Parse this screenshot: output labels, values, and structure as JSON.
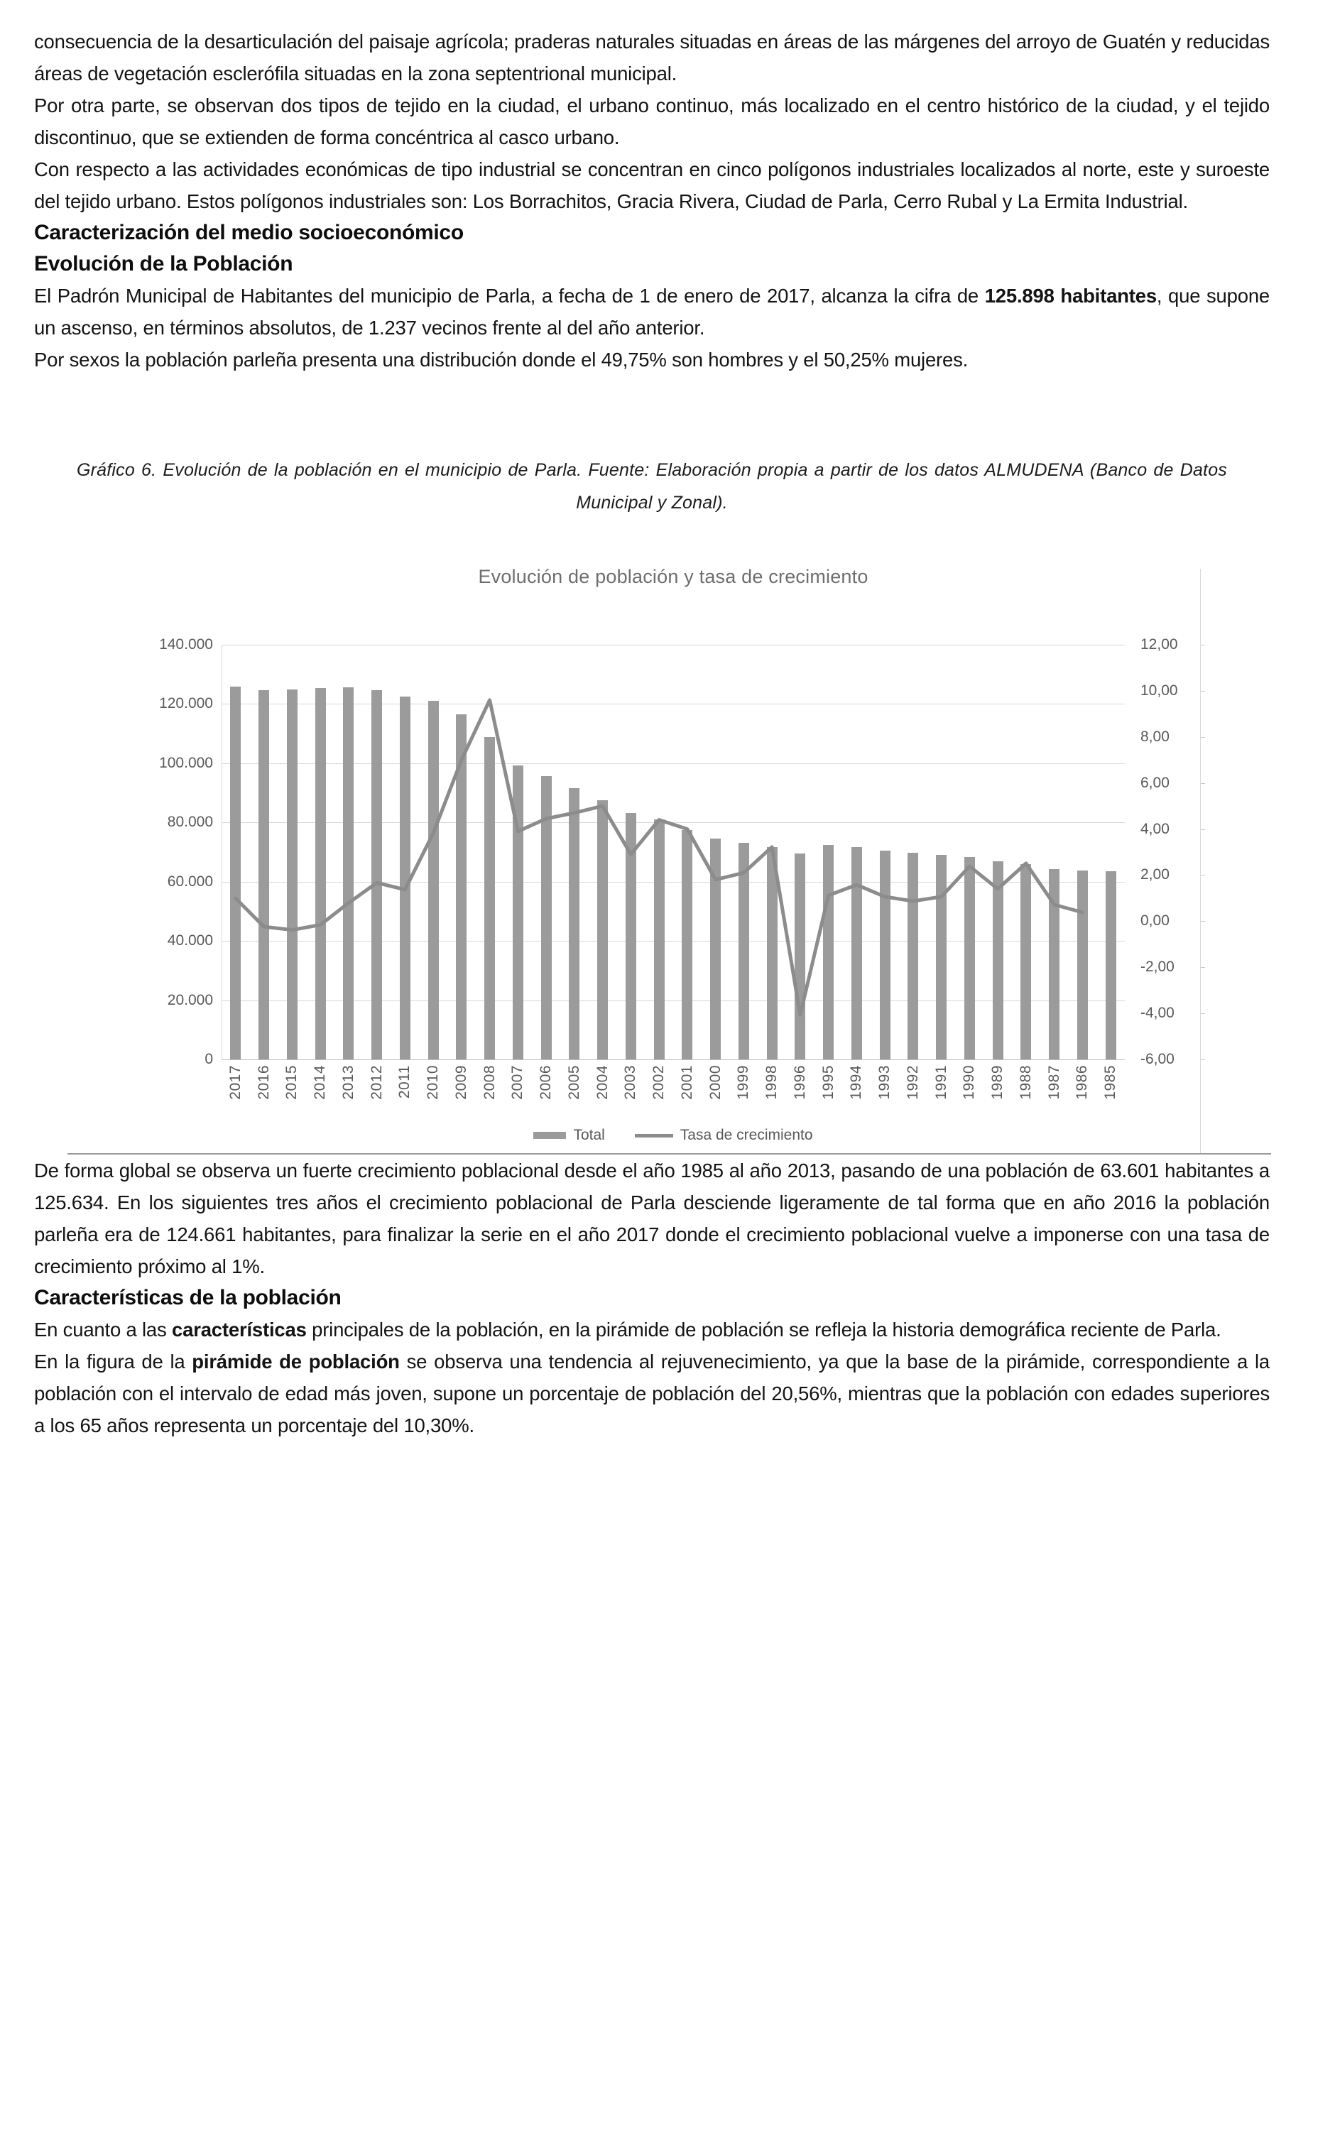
{
  "document": {
    "p1": "consecuencia de la desarticulación del paisaje agrícola; praderas naturales situadas en áreas de las márgenes del arroyo de Guatén y reducidas áreas de vegetación esclerófila situadas en la zona septentrional municipal.",
    "p2": "Por otra parte, se observan dos tipos de tejido en la ciudad, el urbano continuo, más localizado en el centro histórico de la ciudad, y el tejido discontinuo, que se extienden de forma concéntrica al casco urbano.",
    "p3": "Con respecto a las actividades económicas de tipo industrial se concentran en cinco polígonos industriales localizados al norte, este y suroeste del tejido urbano. Estos polígonos industriales son: Los Borrachitos, Gracia Rivera, Ciudad de Parla, Cerro Rubal y La Ermita Industrial.",
    "heading_socioeconomico": "Caracterización del medio socioeconómico",
    "heading_evolucion": "Evolución de la Población",
    "p4_pre": "El Padrón Municipal de Habitantes del municipio de Parla, a fecha de 1 de enero de 2017, alcanza la cifra de ",
    "p4_bold": "125.898 habitantes",
    "p4_post": ", que supone un ascenso, en términos absolutos, de 1.237 vecinos frente al del año anterior.",
    "p5": "Por sexos la población parleña presenta una distribución donde el 49,75% son hombres y el 50,25% mujeres.",
    "caption": "Gráfico 6. Evolución de la población en el municipio de Parla. Fuente: Elaboración propia a partir de los datos ALMUDENA (Banco de Datos Municipal y Zonal).",
    "p6": "De forma global se observa un fuerte crecimiento poblacional desde el año 1985 al año 2013, pasando de una población de 63.601 habitantes a 125.634. En los siguientes tres años el crecimiento poblacional de Parla desciende ligeramente de tal forma que en año 2016 la población parleña era de 124.661 habitantes, para finalizar la serie en el año 2017 donde el crecimiento poblacional vuelve a imponerse con una tasa de crecimiento próximo al 1%.",
    "heading_caracteristicas": "Características de la población",
    "p7_pre": "En cuanto a las ",
    "p7_bold": "características",
    "p7_post": " principales de la población, en la pirámide de población se refleja la historia demográfica reciente de Parla.",
    "p8_pre": "En la figura de la ",
    "p8_bold": "pirámide de población",
    "p8_post": " se observa una tendencia al rejuvenecimiento, ya que la base de la pirámide, correspondiente a la población con el intervalo de edad más joven, supone un porcentaje de población del 20,56%, mientras que la población con edades superiores a los 65 años representa un porcentaje del 10,30%."
  },
  "chart_data": {
    "type": "bar",
    "title": "Evolución de población y tasa de crecimiento",
    "categories": [
      "2017",
      "2016",
      "2015",
      "2014",
      "2013",
      "2012",
      "2011",
      "2010",
      "2009",
      "2008",
      "2007",
      "2006",
      "2005",
      "2004",
      "2003",
      "2002",
      "2001",
      "2000",
      "1999",
      "1998",
      "1996",
      "1995",
      "1994",
      "1993",
      "1992",
      "1991",
      "1990",
      "1989",
      "1988",
      "1987",
      "1986",
      "1985"
    ],
    "series": [
      {
        "name": "Total",
        "type": "bar",
        "axis": "left",
        "values": [
          125898,
          124661,
          124956,
          125436,
          125634,
          124647,
          122605,
          120953,
          116502,
          108880,
          99344,
          95615,
          91541,
          87432,
          83269,
          80922,
          77511,
          74530,
          73212,
          71707,
          69470,
          72410,
          71608,
          70494,
          69755,
          69153,
          68428,
          66837,
          65914,
          64301,
          63841,
          63601
        ]
      },
      {
        "name": "Tasa de crecimiento",
        "type": "line",
        "axis": "right",
        "values": [
          0.99,
          -0.24,
          -0.38,
          -0.16,
          0.79,
          1.67,
          1.37,
          3.82,
          7.0,
          9.6,
          3.9,
          4.45,
          4.7,
          5.0,
          2.9,
          4.4,
          4.0,
          1.8,
          2.1,
          3.22,
          -4.06,
          1.12,
          1.58,
          1.06,
          0.87,
          1.06,
          2.38,
          1.4,
          2.51,
          0.72,
          0.38,
          null
        ]
      }
    ],
    "left_axis": {
      "min": 0,
      "max": 140000,
      "step": 20000,
      "tick_labels": [
        "140.000",
        "120.000",
        "100.000",
        "80.000",
        "60.000",
        "40.000",
        "20.000",
        "0"
      ]
    },
    "right_axis": {
      "min": -6,
      "max": 12,
      "step": 2,
      "tick_labels": [
        "12,00",
        "10,00",
        "8,00",
        "6,00",
        "4,00",
        "2,00",
        "0,00",
        "-2,00",
        "-4,00",
        "-6,00"
      ]
    },
    "legend_position": "bottom",
    "grid": true,
    "colors": {
      "bar": "#9b9b9b",
      "line": "#8c8c8c",
      "grid": "#d9d9d9",
      "axis_text": "#595959",
      "title_text": "#6e6e6e"
    }
  }
}
